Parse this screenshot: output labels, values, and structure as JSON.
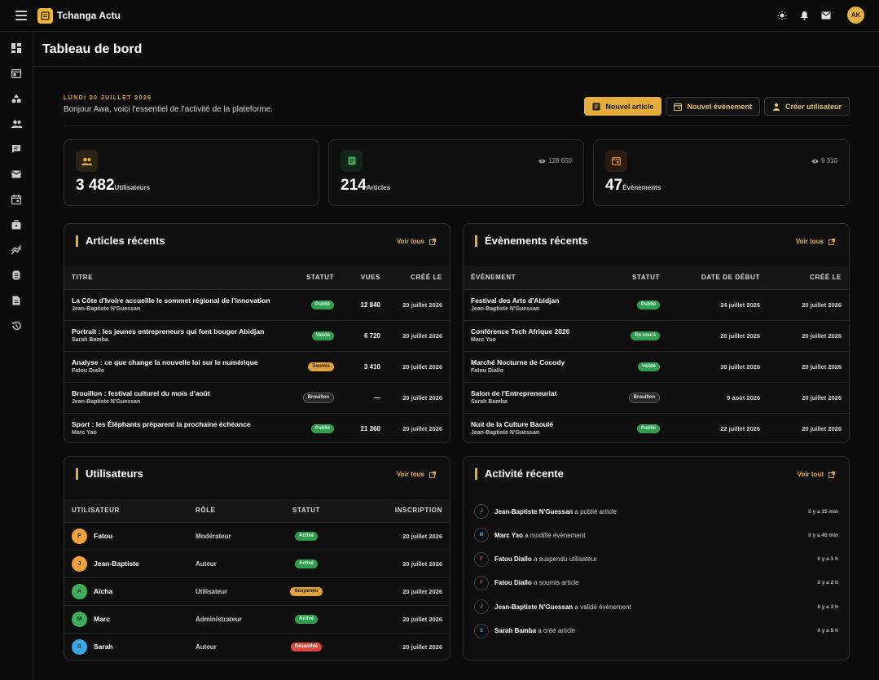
{
  "header": {
    "brand": "Tchanga Actu",
    "avatar_initials": "AK"
  },
  "page": {
    "title": "Tableau de bord"
  },
  "welcome": {
    "date": "LUNDI 20 JUILLET 2026",
    "greeting": "Bonjour Awa, voici l'essentiel de l'activité de la plateforme."
  },
  "actions": {
    "new_article": "Nouvel article",
    "new_event": "Nouvel évènement",
    "create_user": "Créer utilisateur"
  },
  "stats": [
    {
      "value": "3 482",
      "label": "Utilisateurs",
      "views": ""
    },
    {
      "value": "214",
      "label": "Articles",
      "views": "128 650"
    },
    {
      "value": "47",
      "label": "Évènements",
      "views": "9 310"
    }
  ],
  "articles": {
    "title": "Articles récents",
    "see_all": "Voir tous",
    "headers": [
      "TITRE",
      "STATUT",
      "VUES",
      "CRÉÉ LE"
    ],
    "rows": [
      {
        "title": "La Côte d'Ivoire accueille le sommet régional de l'innovation",
        "author": "Jean-Baptiste N'Guessan",
        "status": "Publié",
        "views": "12 840",
        "date": "20 juillet 2026"
      },
      {
        "title": "Portrait : les jeunes entrepreneurs qui font bouger Abidjan",
        "author": "Sarah Bamba",
        "status": "Validé",
        "views": "6 720",
        "date": "20 juillet 2026"
      },
      {
        "title": "Analyse : ce que change la nouvelle loi sur le numérique",
        "author": "Fatou Diallo",
        "status": "Soumis",
        "views": "3 410",
        "date": "20 juillet 2026"
      },
      {
        "title": "Brouillon : festival culturel du mois d'août",
        "author": "Jean-Baptiste N'Guessan",
        "status": "Brouillon",
        "views": "—",
        "date": "20 juillet 2026"
      },
      {
        "title": "Sport : les Éléphants préparent la prochaine échéance",
        "author": "Marc Yao",
        "status": "Publié",
        "views": "21 360",
        "date": "20 juillet 2026"
      }
    ]
  },
  "events": {
    "title": "Évènements récents",
    "see_all": "Voir tous",
    "headers": [
      "ÉVÈNEMENT",
      "STATUT",
      "DATE DE DÉBUT",
      "CRÉÉ LE"
    ],
    "rows": [
      {
        "title": "Festival des Arts d'Abidjan",
        "author": "Jean-Baptiste N'Guessan",
        "status": "Publié",
        "start": "24 juillet 2026",
        "date": "20 juillet 2026"
      },
      {
        "title": "Conférence Tech Afrique 2026",
        "author": "Marc Yao",
        "status": "En cours",
        "start": "20 juillet 2026",
        "date": "20 juillet 2026"
      },
      {
        "title": "Marché Nocturne de Cocody",
        "author": "Fatou Diallo",
        "status": "Validé",
        "start": "30 juillet 2026",
        "date": "20 juillet 2026"
      },
      {
        "title": "Salon de l'Entrepreneuriat",
        "author": "Sarah Bamba",
        "status": "Brouillon",
        "start": "9 août 2026",
        "date": "20 juillet 2026"
      },
      {
        "title": "Nuit de la Culture Baoulé",
        "author": "Jean-Baptiste N'Guessan",
        "status": "Publié",
        "start": "22 juillet 2026",
        "date": "20 juillet 2026"
      }
    ]
  },
  "users": {
    "title": "Utilisateurs",
    "see_all": "Voir tous",
    "headers": [
      "UTILISATEUR",
      "RÔLE",
      "STATUT",
      "INSCRIPTION"
    ],
    "rows": [
      {
        "initial": "F",
        "name": "Fatou",
        "role": "Modérateur",
        "status": "Activé",
        "date": "20 juillet 2026",
        "color": "#f0a13a"
      },
      {
        "initial": "J",
        "name": "Jean-Baptiste",
        "role": "Auteur",
        "status": "Activé",
        "date": "20 juillet 2026",
        "color": "#f0a13a"
      },
      {
        "initial": "A",
        "name": "Aïcha",
        "role": "Utilisateur",
        "status": "Suspendu",
        "date": "20 juillet 2026",
        "color": "#3fae5a"
      },
      {
        "initial": "M",
        "name": "Marc",
        "role": "Administrateur",
        "status": "Activé",
        "date": "20 juillet 2026",
        "color": "#3fae5a"
      },
      {
        "initial": "S",
        "name": "Sarah",
        "role": "Auteur",
        "status": "Désactivé",
        "date": "20 juillet 2026",
        "color": "#3aa6e8"
      }
    ]
  },
  "activity": {
    "title": "Activité récente",
    "see_all": "Voir tout",
    "rows": [
      {
        "initial": "J",
        "name": "Jean-Baptiste N'Guessan",
        "action": "a publié article",
        "time": "il y a 15 min",
        "color": "#3fae5a"
      },
      {
        "initial": "M",
        "name": "Marc Yao",
        "action": "a modifié évènement",
        "time": "il y a 40 min",
        "color": "#3aa6e8"
      },
      {
        "initial": "F",
        "name": "Fatou Diallo",
        "action": "a suspendu utilisateur",
        "time": "il y a 1 h",
        "color": "#d94a3e"
      },
      {
        "initial": "F",
        "name": "Fatou Diallo",
        "action": "a soumis article",
        "time": "il y a 2 h",
        "color": "#d94a3e"
      },
      {
        "initial": "J",
        "name": "Jean-Baptiste N'Guessan",
        "action": "a validé évènement",
        "time": "il y a 3 h",
        "color": "#3fae5a"
      },
      {
        "initial": "S",
        "name": "Sarah Bamba",
        "action": "a créé article",
        "time": "il y a 5 h",
        "color": "#3aa6e8"
      }
    ]
  },
  "status_colors": {
    "Publié": "green",
    "Validé": "green",
    "Activé": "green",
    "En cours": "green",
    "Soumis": "yellow",
    "Suspendu": "yellow",
    "Brouillon": "grey",
    "Désactivé": "red"
  },
  "sidebar_icons": [
    "dashboard-icon",
    "articles-icon",
    "categories-icon",
    "users-icon",
    "comments-icon",
    "mail-icon",
    "events-icon",
    "ads-icon",
    "analytics-icon",
    "settings-icon",
    "pages-icon",
    "history-icon"
  ]
}
